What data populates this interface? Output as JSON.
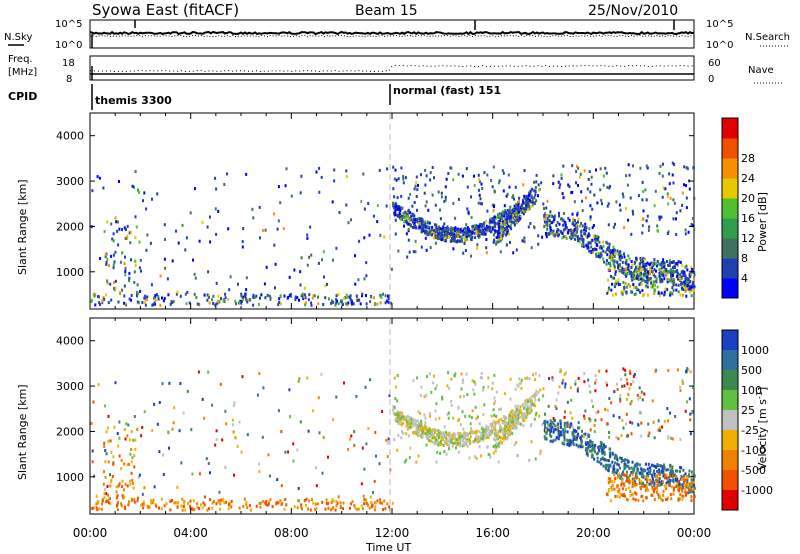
{
  "header": {
    "station": "Syowa East (fitACF)",
    "beam": "Beam 15",
    "date": "25/Nov/2010"
  },
  "noise_panel": {
    "left_label": "N.Sky",
    "right_label": "N.Search",
    "left_ticks": [
      "10^5",
      "10^0"
    ],
    "right_ticks": [
      "10^5",
      "10^0"
    ]
  },
  "freq_panel": {
    "left_label_1": "Freq.",
    "left_label_2": "[MHz]",
    "right_label": "Nave",
    "left_ticks": [
      "18",
      "8"
    ],
    "right_ticks": [
      "60",
      "0"
    ]
  },
  "cpid_panel": {
    "label": "CPID",
    "modes": [
      {
        "name": "themis 3300",
        "start_hour": 0
      },
      {
        "name": "normal (fast) 151",
        "start_hour": 12
      }
    ]
  },
  "chart_data": [
    {
      "type": "heatmap",
      "quantity": "Power",
      "ylabel": "Slant Range [km]",
      "ylim": [
        180,
        4500
      ],
      "yticks": [
        "1000",
        "2000",
        "3000",
        "4000"
      ],
      "xlabel": "Time UT",
      "xlim": [
        "00:00",
        "24:00"
      ],
      "xticks": [
        "00:00",
        "04:00",
        "08:00",
        "12:00",
        "16:00",
        "20:00",
        "00:00"
      ],
      "colorbar": {
        "label": "Power [dB]",
        "ticks": [
          "4",
          "8",
          "12",
          "16",
          "20",
          "24",
          "28"
        ],
        "colors": [
          "#0000ff",
          "#2040b0",
          "#3f7060",
          "#2e9e4a",
          "#50c030",
          "#e8c800",
          "#f59000",
          "#f05000",
          "#e00000"
        ]
      }
    },
    {
      "type": "heatmap",
      "quantity": "Velocity",
      "ylabel": "Slant Range [km]",
      "ylim": [
        180,
        4500
      ],
      "yticks": [
        "1000",
        "2000",
        "3000",
        "4000"
      ],
      "xlabel": "Time UT",
      "xlim": [
        "00:00",
        "24:00"
      ],
      "xticks": [
        "00:00",
        "04:00",
        "08:00",
        "12:00",
        "16:00",
        "20:00",
        "00:00"
      ],
      "colorbar": {
        "label": "Velocity [m s^-1]",
        "ticks": [
          "1000",
          "500",
          "100",
          "25",
          "-25",
          "-100",
          "-500",
          "-1000"
        ],
        "colors": [
          "#1840c0",
          "#3070a0",
          "#3a8a50",
          "#60c040",
          "#c0c0c0",
          "#f0b000",
          "#f08000",
          "#f05000",
          "#e00000"
        ]
      }
    }
  ]
}
